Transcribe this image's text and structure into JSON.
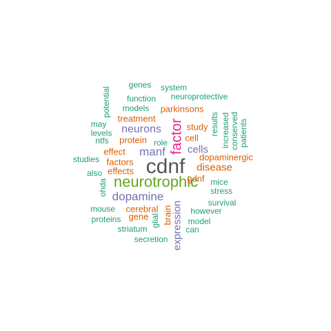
{
  "colors": {
    "teal": "#1b9e77",
    "orange": "#d95f02",
    "purple": "#7570b3",
    "magenta": "#e7298a",
    "green": "#66a61e",
    "gray": "#555555"
  },
  "words": [
    {
      "id": "cdnf",
      "text": "cdnf",
      "color": "gray"
    },
    {
      "id": "neurotrophic",
      "text": "neurotrophic",
      "color": "green"
    },
    {
      "id": "factor",
      "text": "factor",
      "color": "magenta"
    },
    {
      "id": "dopamine",
      "text": "dopamine",
      "color": "purple"
    },
    {
      "id": "neurons",
      "text": "neurons",
      "color": "purple"
    },
    {
      "id": "manf",
      "text": "manf",
      "color": "purple"
    },
    {
      "id": "expression",
      "text": "expression",
      "color": "purple"
    },
    {
      "id": "cells",
      "text": "cells",
      "color": "purple"
    },
    {
      "id": "disease",
      "text": "disease",
      "color": "orange"
    },
    {
      "id": "parkinsons",
      "text": "parkinsons",
      "color": "orange"
    },
    {
      "id": "protein",
      "text": "protein",
      "color": "orange"
    },
    {
      "id": "factors",
      "text": "factors",
      "color": "orange"
    },
    {
      "id": "effects",
      "text": "effects",
      "color": "orange"
    },
    {
      "id": "cerebral",
      "text": "cerebral",
      "color": "orange"
    },
    {
      "id": "dopaminergic",
      "text": "dopaminergic",
      "color": "orange"
    },
    {
      "id": "cell",
      "text": "cell",
      "color": "orange"
    },
    {
      "id": "treatment",
      "text": "treatment",
      "color": "orange"
    },
    {
      "id": "effect",
      "text": "effect",
      "color": "orange"
    },
    {
      "id": "gene",
      "text": "gene",
      "color": "orange"
    },
    {
      "id": "gdnf",
      "text": "gdnf",
      "color": "orange"
    },
    {
      "id": "brain",
      "text": "brain",
      "color": "orange"
    },
    {
      "id": "study",
      "text": "study",
      "color": "orange"
    },
    {
      "id": "genes",
      "text": "genes",
      "color": "teal"
    },
    {
      "id": "system",
      "text": "system",
      "color": "teal"
    },
    {
      "id": "potential",
      "text": "potential",
      "color": "teal"
    },
    {
      "id": "function",
      "text": "function",
      "color": "teal"
    },
    {
      "id": "neuroprotective",
      "text": "neuroprotective",
      "color": "teal"
    },
    {
      "id": "models",
      "text": "models",
      "color": "teal"
    },
    {
      "id": "may",
      "text": "may",
      "color": "teal"
    },
    {
      "id": "levels",
      "text": "levels",
      "color": "teal"
    },
    {
      "id": "ntfs",
      "text": "ntfs",
      "color": "teal"
    },
    {
      "id": "role",
      "text": "role",
      "color": "teal"
    },
    {
      "id": "results",
      "text": "results",
      "color": "teal"
    },
    {
      "id": "increased",
      "text": "increased",
      "color": "teal"
    },
    {
      "id": "conserved",
      "text": "conserved",
      "color": "teal"
    },
    {
      "id": "patients",
      "text": "patients",
      "color": "teal"
    },
    {
      "id": "studies",
      "text": "studies",
      "color": "teal"
    },
    {
      "id": "also",
      "text": "also",
      "color": "teal"
    },
    {
      "id": "ohda",
      "text": "ohda",
      "color": "teal"
    },
    {
      "id": "mice",
      "text": "mice",
      "color": "teal"
    },
    {
      "id": "stress",
      "text": "stress",
      "color": "teal"
    },
    {
      "id": "survival",
      "text": "survival",
      "color": "teal"
    },
    {
      "id": "however",
      "text": "however",
      "color": "teal"
    },
    {
      "id": "mouse",
      "text": "mouse",
      "color": "teal"
    },
    {
      "id": "proteins",
      "text": "proteins",
      "color": "teal"
    },
    {
      "id": "glial",
      "text": "glial",
      "color": "teal"
    },
    {
      "id": "model",
      "text": "model",
      "color": "teal"
    },
    {
      "id": "striatum",
      "text": "striatum",
      "color": "teal"
    },
    {
      "id": "can",
      "text": "can",
      "color": "teal"
    },
    {
      "id": "secretion",
      "text": "secretion",
      "color": "teal"
    }
  ]
}
